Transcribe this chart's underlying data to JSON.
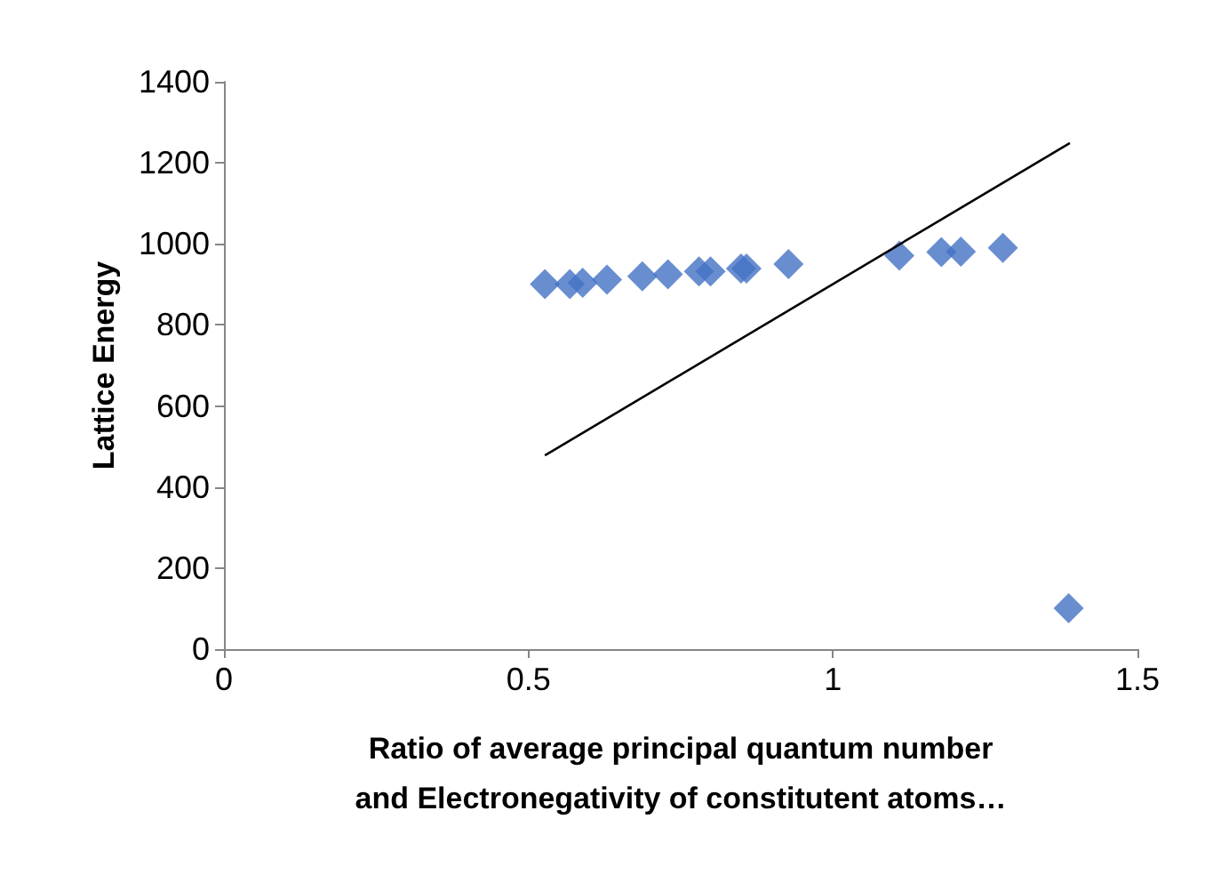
{
  "chart_data": {
    "type": "scatter",
    "xlabel": "Ratio of average principal quantum number\nand Electronegativity of constitutent atoms…",
    "ylabel": "Lattice Energy",
    "xlim": [
      0,
      1.5
    ],
    "xticks": [
      0,
      0.5,
      1,
      1.5
    ],
    "ylim": [
      0,
      1400
    ],
    "yticks": [
      0,
      200,
      400,
      600,
      800,
      1000,
      1200,
      1400
    ],
    "grid": false,
    "marker": "diamond",
    "series": [
      {
        "color": "#4472c4",
        "x": [
          0.527,
          0.568,
          0.589,
          0.629,
          0.687,
          0.729,
          0.78,
          0.799,
          0.849,
          0.858,
          0.927,
          1.109,
          1.178,
          1.21,
          1.279,
          1.387
        ],
        "values": [
          901,
          901,
          904,
          912,
          920,
          925,
          932,
          932,
          939,
          939,
          950,
          971,
          980,
          981,
          990,
          101
        ]
      },
      {
        "type": "line",
        "color": "#000000",
        "marker": "none",
        "x": [
          0.527,
          1.389
        ],
        "values": [
          478,
          1249
        ]
      }
    ]
  }
}
